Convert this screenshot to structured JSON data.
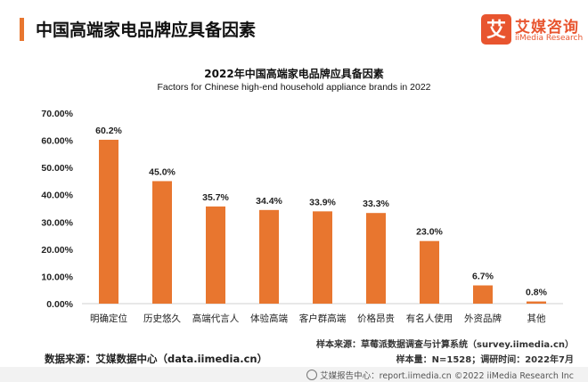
{
  "header": {
    "title": "中国高端家电品牌应具备因素"
  },
  "logo": {
    "cn": "艾媒咨询",
    "en": "iiMedia Research",
    "mark": "艾"
  },
  "colors": {
    "bar": "#e8762f",
    "accent": "#e8762f",
    "brand": "#e8552f"
  },
  "chart_data": {
    "type": "bar",
    "title": "2022年中国高端家电品牌应具备因素",
    "subtitle": "Factors for Chinese high-end household appliance brands in 2022",
    "categories": [
      "明确定位",
      "历史悠久",
      "高端代言人",
      "体验高端",
      "客户群高端",
      "价格昂贵",
      "有名人使用",
      "外资品牌",
      "其他"
    ],
    "values": [
      60.2,
      45.0,
      35.7,
      34.4,
      33.9,
      33.3,
      23.0,
      6.7,
      0.8
    ],
    "value_labels": [
      "60.2%",
      "45.0%",
      "35.7%",
      "34.4%",
      "33.9%",
      "33.3%",
      "23.0%",
      "6.7%",
      "0.8%"
    ],
    "y_ticks": [
      "0.00%",
      "10.00%",
      "20.00%",
      "30.00%",
      "40.00%",
      "50.00%",
      "60.00%",
      "70.00%"
    ],
    "ylim": [
      0,
      70
    ],
    "grid": false,
    "legend": "none"
  },
  "source": {
    "left": "数据来源：艾媒数据中心（data.iimedia.cn）",
    "note1": "样本来源：草莓派数据调查与计算系统（survey.iimedia.cn）",
    "note2": "样本量：N=1528；调研时间：2022年7月"
  },
  "footer": {
    "text": "艾媒报告中心：report.iimedia.cn  ©2022  iiMedia Research  Inc"
  }
}
